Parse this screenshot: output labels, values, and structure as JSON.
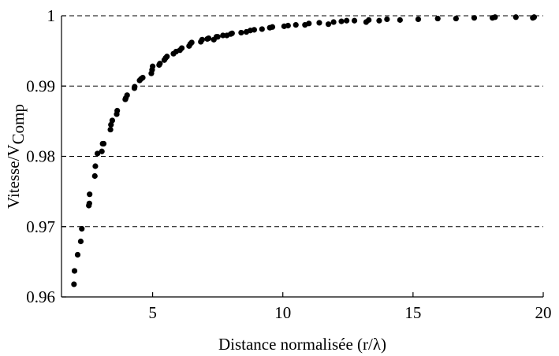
{
  "chart_data": {
    "type": "scatter",
    "title": "",
    "xlabel": "Distance normalisée (r/λ)",
    "ylabel": {
      "base": "Vitesse/V",
      "subscript": "Comp"
    },
    "xlim": [
      1.5,
      20
    ],
    "ylim": [
      0.96,
      1.0
    ],
    "xticks": [
      5,
      10,
      15,
      20
    ],
    "xtick_labels": [
      "5",
      "10",
      "15",
      "20"
    ],
    "yticks": [
      0.96,
      0.97,
      0.98,
      0.99,
      1.0
    ],
    "ytick_labels": [
      "0.96",
      "0.97",
      "0.98",
      "0.99",
      "1"
    ],
    "grid": "horizontal dashed",
    "legend": "none",
    "marker_color": "#000000",
    "grid_color": "#000000",
    "series": [
      {
        "points": [
          [
            1.98,
            0.9618
          ],
          [
            2.0,
            0.9637
          ],
          [
            2.12,
            0.966
          ],
          [
            2.24,
            0.9679
          ],
          [
            2.28,
            0.9697
          ],
          [
            2.55,
            0.973
          ],
          [
            2.57,
            0.9733
          ],
          [
            2.58,
            0.9746
          ],
          [
            2.78,
            0.9772
          ],
          [
            2.8,
            0.9786
          ],
          [
            2.88,
            0.9804
          ],
          [
            3.05,
            0.9807
          ],
          [
            3.08,
            0.9818
          ],
          [
            3.12,
            0.9818
          ],
          [
            3.38,
            0.9838
          ],
          [
            3.4,
            0.9845
          ],
          [
            3.45,
            0.9851
          ],
          [
            3.62,
            0.986
          ],
          [
            3.64,
            0.9865
          ],
          [
            3.95,
            0.9881
          ],
          [
            3.97,
            0.9883
          ],
          [
            4.02,
            0.9887
          ],
          [
            4.3,
            0.9897
          ],
          [
            4.31,
            0.9899
          ],
          [
            4.5,
            0.9908
          ],
          [
            4.55,
            0.991
          ],
          [
            4.62,
            0.9912
          ],
          [
            4.95,
            0.9918
          ],
          [
            4.98,
            0.9923
          ],
          [
            5.0,
            0.9928
          ],
          [
            5.25,
            0.993
          ],
          [
            5.28,
            0.9932
          ],
          [
            5.45,
            0.9937
          ],
          [
            5.5,
            0.994
          ],
          [
            5.55,
            0.9942
          ],
          [
            5.8,
            0.9946
          ],
          [
            5.9,
            0.9949
          ],
          [
            6.05,
            0.9951
          ],
          [
            6.12,
            0.9954
          ],
          [
            6.4,
            0.9957
          ],
          [
            6.45,
            0.996
          ],
          [
            6.5,
            0.9962
          ],
          [
            6.85,
            0.9963
          ],
          [
            6.9,
            0.9966
          ],
          [
            7.1,
            0.9967
          ],
          [
            7.15,
            0.9968
          ],
          [
            7.35,
            0.9966
          ],
          [
            7.45,
            0.997
          ],
          [
            7.5,
            0.997
          ],
          [
            7.7,
            0.9972
          ],
          [
            7.85,
            0.9972
          ],
          [
            8.0,
            0.9974
          ],
          [
            8.05,
            0.9975
          ],
          [
            8.4,
            0.9976
          ],
          [
            8.6,
            0.9977
          ],
          [
            8.75,
            0.9979
          ],
          [
            8.9,
            0.998
          ],
          [
            9.2,
            0.9981
          ],
          [
            9.5,
            0.9983
          ],
          [
            9.6,
            0.9984
          ],
          [
            10.05,
            0.9985
          ],
          [
            10.2,
            0.9986
          ],
          [
            10.5,
            0.9987
          ],
          [
            10.85,
            0.9987
          ],
          [
            11.0,
            0.9989
          ],
          [
            11.4,
            0.999
          ],
          [
            11.75,
            0.9988
          ],
          [
            11.95,
            0.9991
          ],
          [
            12.25,
            0.9992
          ],
          [
            12.45,
            0.9993
          ],
          [
            12.75,
            0.9993
          ],
          [
            13.2,
            0.9991
          ],
          [
            13.3,
            0.9994
          ],
          [
            13.7,
            0.9993
          ],
          [
            14.0,
            0.9995
          ],
          [
            14.5,
            0.9994
          ],
          [
            15.2,
            0.9995
          ],
          [
            15.95,
            0.9996
          ],
          [
            16.65,
            0.9996
          ],
          [
            17.35,
            0.9997
          ],
          [
            18.05,
            0.9997
          ],
          [
            18.15,
            0.9998
          ],
          [
            18.95,
            0.9998
          ],
          [
            19.6,
            0.9997
          ],
          [
            19.65,
            0.9998
          ]
        ]
      }
    ]
  }
}
